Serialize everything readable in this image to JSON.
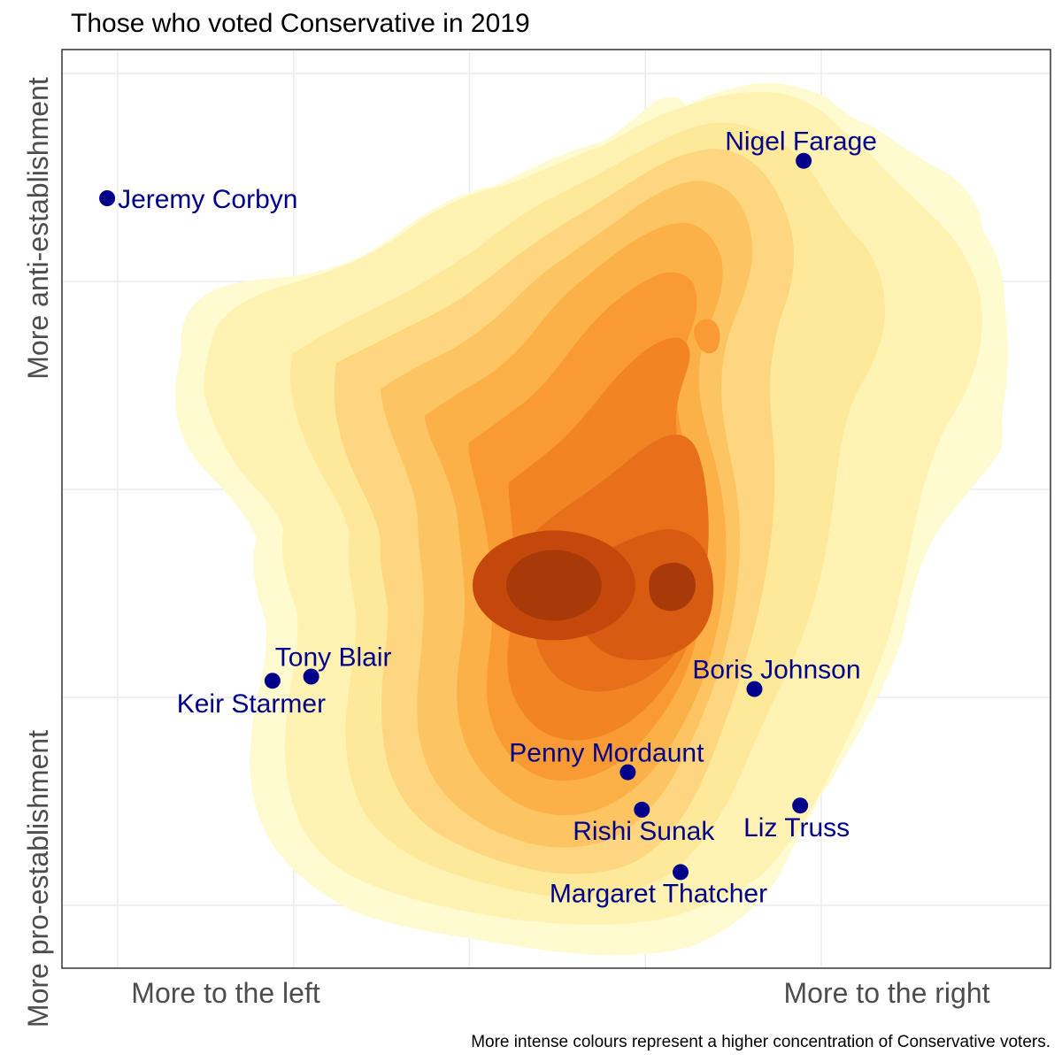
{
  "chart_data": {
    "type": "scatter",
    "title": "Those who voted Conservative in 2019",
    "xlabel": "",
    "ylabel_top": "More anti-establishment",
    "ylabel_bottom": "More pro-establishment",
    "x_ticks": [
      "More to the left",
      "More to the right"
    ],
    "caption": "More intense colours represent a higher concentration of Conservative voters.",
    "xlim": [
      -1.2,
      1.2
    ],
    "ylim": [
      -1.2,
      1.2
    ],
    "grid": true,
    "density_peak": {
      "x": 0.22,
      "y": -0.22
    },
    "density_colors": [
      "#fffbd1",
      "#fff2b3",
      "#fee89a",
      "#fdd67f",
      "#fdc462",
      "#fcb048",
      "#f99a32",
      "#f28424",
      "#e8701a",
      "#d95b12",
      "#c4480c",
      "#a83a0a"
    ],
    "point_color": "#00008b",
    "points": [
      {
        "name": "Jeremy Corbyn",
        "x": -1.03,
        "y": 0.7
      },
      {
        "name": "Nigel Farage",
        "x": 0.95,
        "y": 0.79
      },
      {
        "name": "Tony Blair",
        "x": -0.45,
        "y": -0.45
      },
      {
        "name": "Keir Starmer",
        "x": -0.56,
        "y": -0.46
      },
      {
        "name": "Boris Johnson",
        "x": 0.81,
        "y": -0.48
      },
      {
        "name": "Penny Mordaunt",
        "x": 0.45,
        "y": -0.68
      },
      {
        "name": "Rishi Sunak",
        "x": 0.49,
        "y": -0.77
      },
      {
        "name": "Liz Truss",
        "x": 0.94,
        "y": -0.76
      },
      {
        "name": "Margaret Thatcher",
        "x": 0.6,
        "y": -0.92
      }
    ]
  }
}
